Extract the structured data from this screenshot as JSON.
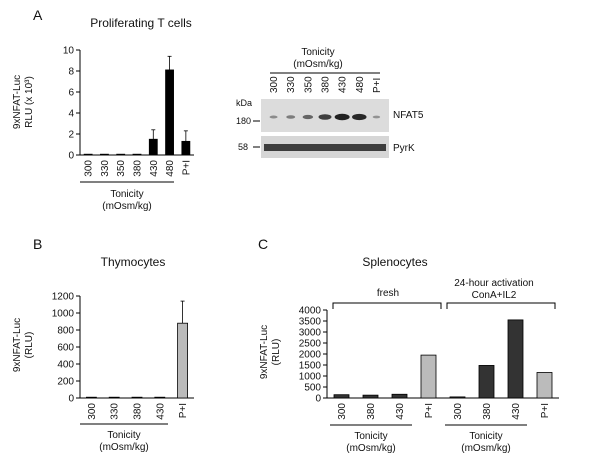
{
  "panelA": {
    "letter": "A",
    "chart_data": {
      "type": "bar",
      "title": "Proliferating T cells",
      "ylabel_lines": [
        "9xNFAT-Luc",
        "RLU (x 10³)"
      ],
      "categories": [
        "300",
        "330",
        "350",
        "380",
        "430",
        "480",
        "P+I"
      ],
      "values": [
        0,
        0,
        0,
        0,
        1.5,
        8.1,
        1.3
      ],
      "errors": [
        0,
        0,
        0,
        0,
        0.9,
        1.3,
        1.0
      ],
      "ylim": [
        0,
        10
      ],
      "yticks": [
        0,
        2,
        4,
        6,
        8,
        10
      ],
      "bar_color": "#000000",
      "group_label_lines": [
        "Tonicity",
        "(mOsm/kg)"
      ]
    },
    "blot": {
      "header_lines": [
        "Tonicity",
        "(mOsm/kg)"
      ],
      "lanes": [
        "300",
        "330",
        "350",
        "380",
        "430",
        "480",
        "P+I"
      ],
      "kda_label": "kDa",
      "marker_180": "180",
      "marker_58": "58",
      "band1_label": "NFAT5",
      "band2_label": "PyrK",
      "band1_intensity": [
        0.2,
        0.3,
        0.45,
        0.7,
        0.9,
        0.85,
        0.15
      ]
    }
  },
  "panelB": {
    "letter": "B",
    "chart_data": {
      "type": "bar",
      "title": "Thymocytes",
      "ylabel_lines": [
        "9xNFAT-Luc",
        "(RLU)"
      ],
      "categories": [
        "300",
        "330",
        "380",
        "430",
        "P+I"
      ],
      "values": [
        5,
        5,
        5,
        5,
        880
      ],
      "errors": [
        0,
        0,
        0,
        0,
        260
      ],
      "bar_colors": [
        "#bbbbbb",
        "#bbbbbb",
        "#bbbbbb",
        "#bbbbbb",
        "#bbbbbb"
      ],
      "ylim": [
        0,
        1200
      ],
      "yticks": [
        0,
        200,
        400,
        600,
        800,
        1000,
        1200
      ],
      "group_label_lines": [
        "Tonicity",
        "(mOsm/kg)"
      ]
    }
  },
  "panelC": {
    "letter": "C",
    "chart_data": {
      "type": "bar",
      "title": "Splenocytes",
      "ylabel_lines": [
        "9xNFAT-Luc",
        "(RLU)"
      ],
      "categories": [
        "300",
        "380",
        "430",
        "P+I",
        "300",
        "380",
        "430",
        "P+I"
      ],
      "values": [
        150,
        130,
        170,
        1950,
        50,
        1480,
        3550,
        1160
      ],
      "bar_colors": [
        "#333333",
        "#333333",
        "#333333",
        "#bbbbbb",
        "#333333",
        "#333333",
        "#333333",
        "#bbbbbb"
      ],
      "ylim": [
        0,
        4000
      ],
      "yticks": [
        0,
        500,
        1000,
        1500,
        2000,
        2500,
        3000,
        3500,
        4000
      ],
      "group1_label": "fresh",
      "group2_label_lines": [
        "24-hour activation",
        "ConA+IL2"
      ],
      "bottom_group_label_lines": [
        "Tonicity",
        "(mOsm/kg)"
      ]
    }
  }
}
